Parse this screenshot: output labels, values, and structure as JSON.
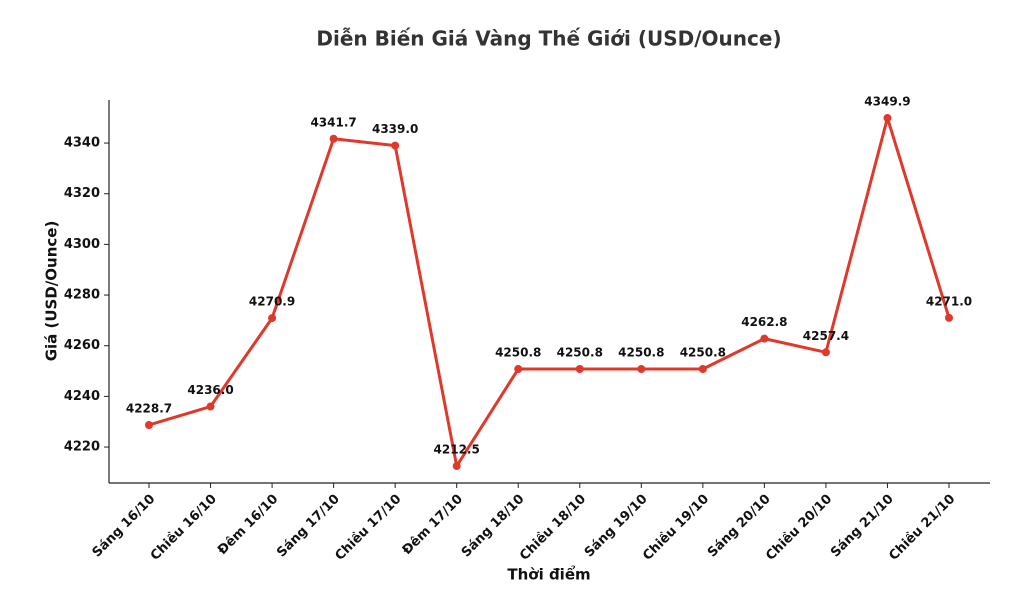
{
  "chart_data": {
    "type": "line",
    "title": "Diễn Biến Giá Vàng Thế Giới (USD/Ounce)",
    "x_label": "Thời điểm",
    "y_label": "Giá (USD/Ounce)",
    "categories": [
      "Sáng 16/10",
      "Chiều 16/10",
      "Đêm 16/10",
      "Sáng 17/10",
      "Chiều 17/10",
      "Đêm 17/10",
      "Sáng 18/10",
      "Chiều 18/10",
      "Sáng 19/10",
      "Chiều 19/10",
      "Sáng 20/10",
      "Chiều 20/10",
      "Sáng 21/10",
      "Chiều 21/10"
    ],
    "series": [
      {
        "name": "Giá",
        "color": "#e0392b",
        "values": [
          4228.7,
          4236.0,
          4270.9,
          4341.7,
          4339.0,
          4212.5,
          4250.8,
          4250.8,
          4250.8,
          4250.8,
          4262.8,
          4257.4,
          4349.9,
          4271.0
        ],
        "value_labels": [
          "4228.7",
          "4236.0",
          "4270.9",
          "4341.7",
          "4339.0",
          "4212.5",
          "4250.8",
          "4250.8",
          "4250.8",
          "4250.8",
          "4262.8",
          "4257.4",
          "4349.9",
          "4271.0"
        ]
      }
    ],
    "ylim": [
      4205.8,
      4357
    ],
    "yticks": [
      4220,
      4240,
      4260,
      4280,
      4300,
      4320,
      4340
    ],
    "grid": false
  }
}
